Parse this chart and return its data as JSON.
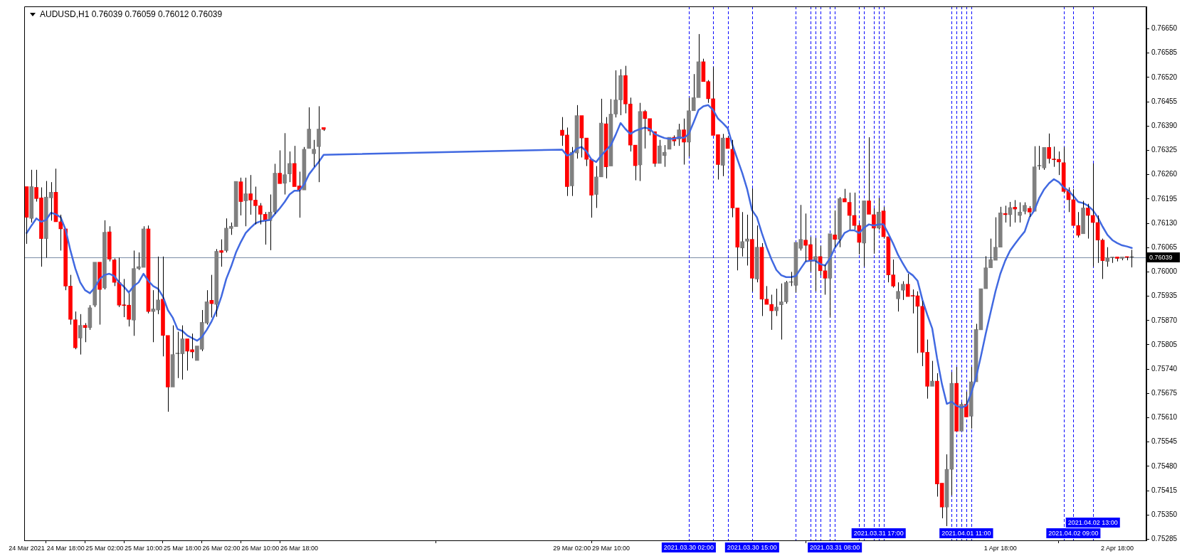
{
  "chart_data": {
    "type": "candlestick",
    "title": "AUDUSD,H1 0.76039 0.76059 0.76012 0.76039",
    "x": [
      "2021-03-24T10:00",
      "2021-03-24T11:00",
      "2021-03-24T12:00",
      "2021-03-24T13:00",
      "2021-03-24T14:00",
      "2021-03-24T15:00",
      "2021-03-24T16:00",
      "2021-03-24T17:00",
      "2021-03-24T18:00",
      "2021-03-24T19:00",
      "2021-03-24T20:00",
      "2021-03-24T21:00",
      "2021-03-24T22:00",
      "2021-03-24T23:00",
      "2021-03-25T00:00",
      "2021-03-25T01:00",
      "2021-03-25T02:00",
      "2021-03-25T03:00",
      "2021-03-25T04:00",
      "2021-03-25T05:00",
      "2021-03-25T06:00",
      "2021-03-25T07:00",
      "2021-03-25T08:00",
      "2021-03-25T09:00",
      "2021-03-25T10:00",
      "2021-03-25T11:00",
      "2021-03-25T12:00",
      "2021-03-25T13:00",
      "2021-03-25T14:00",
      "2021-03-25T15:00",
      "2021-03-25T16:00",
      "2021-03-25T17:00",
      "2021-03-25T18:00",
      "2021-03-25T19:00",
      "2021-03-25T20:00",
      "2021-03-25T21:00",
      "2021-03-25T22:00",
      "2021-03-25T23:00",
      "2021-03-26T00:00",
      "2021-03-26T01:00",
      "2021-03-26T02:00",
      "2021-03-26T03:00",
      "2021-03-26T04:00",
      "2021-03-26T05:00",
      "2021-03-26T06:00",
      "2021-03-26T07:00",
      "2021-03-26T08:00",
      "2021-03-26T09:00",
      "2021-03-26T10:00",
      "2021-03-26T11:00",
      "2021-03-26T12:00",
      "2021-03-26T13:00",
      "2021-03-26T14:00",
      "2021-03-26T15:00",
      "2021-03-26T16:00",
      "2021-03-26T17:00",
      "2021-03-26T18:00",
      "2021-03-26T19:00",
      "2021-03-26T20:00",
      "2021-03-26T21:00",
      "2021-03-26T22:00",
      "2021-03-26T23:00",
      "2021-03-29T00:00",
      "2021-03-29T01:00",
      "2021-03-29T02:00",
      "2021-03-29T03:00",
      "2021-03-29T04:00",
      "2021-03-29T05:00",
      "2021-03-29T06:00",
      "2021-03-29T07:00",
      "2021-03-29T08:00",
      "2021-03-29T09:00",
      "2021-03-29T10:00",
      "2021-03-29T11:00",
      "2021-03-29T12:00",
      "2021-03-29T13:00",
      "2021-03-29T14:00",
      "2021-03-29T15:00",
      "2021-03-29T16:00",
      "2021-03-29T17:00",
      "2021-03-29T18:00",
      "2021-03-29T19:00",
      "2021-03-29T20:00",
      "2021-03-29T21:00",
      "2021-03-29T22:00",
      "2021-03-29T23:00",
      "2021-03-30T00:00",
      "2021-03-30T01:00",
      "2021-03-30T02:00",
      "2021-03-30T03:00",
      "2021-03-30T04:00",
      "2021-03-30T05:00",
      "2021-03-30T06:00",
      "2021-03-30T07:00",
      "2021-03-30T08:00",
      "2021-03-30T09:00",
      "2021-03-30T10:00",
      "2021-03-30T11:00",
      "2021-03-30T12:00",
      "2021-03-30T13:00",
      "2021-03-30T14:00",
      "2021-03-30T15:00",
      "2021-03-30T16:00",
      "2021-03-30T17:00",
      "2021-03-30T18:00",
      "2021-03-30T19:00",
      "2021-03-30T20:00",
      "2021-03-30T21:00",
      "2021-03-30T22:00",
      "2021-03-30T23:00",
      "2021-03-31T00:00",
      "2021-03-31T01:00",
      "2021-03-31T02:00",
      "2021-03-31T03:00",
      "2021-03-31T04:00",
      "2021-03-31T05:00",
      "2021-03-31T06:00",
      "2021-03-31T07:00",
      "2021-03-31T08:00",
      "2021-03-31T09:00",
      "2021-03-31T10:00",
      "2021-03-31T11:00",
      "2021-03-31T12:00",
      "2021-03-31T13:00",
      "2021-03-31T14:00",
      "2021-03-31T15:00",
      "2021-03-31T16:00",
      "2021-03-31T17:00",
      "2021-03-31T18:00",
      "2021-03-31T19:00",
      "2021-03-31T20:00",
      "2021-03-31T21:00",
      "2021-03-31T22:00",
      "2021-03-31T23:00",
      "2021-04-01T00:00",
      "2021-04-01T01:00",
      "2021-04-01T02:00",
      "2021-04-01T03:00",
      "2021-04-01T04:00",
      "2021-04-01T05:00",
      "2021-04-01T06:00",
      "2021-04-01T07:00",
      "2021-04-01T08:00",
      "2021-04-01T09:00",
      "2021-04-01T10:00",
      "2021-04-01T11:00",
      "2021-04-01T12:00",
      "2021-04-01T13:00",
      "2021-04-01T14:00",
      "2021-04-01T15:00",
      "2021-04-01T16:00",
      "2021-04-01T17:00",
      "2021-04-01T18:00",
      "2021-04-01T19:00",
      "2021-04-01T20:00",
      "2021-04-01T21:00",
      "2021-04-01T22:00",
      "2021-04-01T23:00",
      "2021-04-02T00:00",
      "2021-04-02T01:00",
      "2021-04-02T02:00",
      "2021-04-02T03:00",
      "2021-04-02T04:00",
      "2021-04-02T05:00",
      "2021-04-02T06:00",
      "2021-04-02T07:00",
      "2021-04-02T08:00",
      "2021-04-02T09:00",
      "2021-04-02T10:00",
      "2021-04-02T11:00",
      "2021-04-02T12:00",
      "2021-04-02T13:00",
      "2021-04-02T14:00",
      "2021-04-02T15:00",
      "2021-04-02T16:00",
      "2021-04-02T17:00",
      "2021-04-02T18:00",
      "2021-04-02T19:00",
      "2021-04-02T20:00",
      "2021-04-02T21:00"
    ],
    "ohlc": [
      [
        0.76228,
        0.76231,
        0.76075,
        0.76146
      ],
      [
        0.76143,
        0.76273,
        0.76132,
        0.76228
      ],
      [
        0.76226,
        0.76273,
        0.76188,
        0.76196
      ],
      [
        0.76198,
        0.76226,
        0.76014,
        0.76089
      ],
      [
        0.76089,
        0.76243,
        0.76038,
        0.762
      ],
      [
        0.76198,
        0.7624,
        0.76137,
        0.76213
      ],
      [
        0.76213,
        0.76276,
        0.76132,
        0.76134
      ],
      [
        0.76134,
        0.76153,
        0.76057,
        0.76115
      ],
      [
        0.76115,
        0.76117,
        0.75951,
        0.75962
      ],
      [
        0.75962,
        0.75992,
        0.75859,
        0.75873
      ],
      [
        0.75872,
        0.75894,
        0.75793,
        0.75797
      ],
      [
        0.75823,
        0.75887,
        0.75779,
        0.75857
      ],
      [
        0.75857,
        0.75863,
        0.75812,
        0.75851
      ],
      [
        0.75851,
        0.75911,
        0.75845,
        0.75904
      ],
      [
        0.75911,
        0.76026,
        0.75906,
        0.76026
      ],
      [
        0.76026,
        0.76026,
        0.75859,
        0.75953
      ],
      [
        0.75957,
        0.76138,
        0.75953,
        0.76106
      ],
      [
        0.76107,
        0.76122,
        0.76028,
        0.76034
      ],
      [
        0.76032,
        0.76036,
        0.75962,
        0.75972
      ],
      [
        0.75972,
        0.76038,
        0.75906,
        0.75911
      ],
      [
        0.75911,
        0.75981,
        0.75879,
        0.7591
      ],
      [
        0.75911,
        0.75943,
        0.75854,
        0.75873
      ],
      [
        0.75871,
        0.76057,
        0.75829,
        0.76009
      ],
      [
        0.76009,
        0.76052,
        0.76005,
        0.76014
      ],
      [
        0.76012,
        0.76122,
        0.76011,
        0.76115
      ],
      [
        0.76115,
        0.76124,
        0.75889,
        0.75894
      ],
      [
        0.75894,
        0.75951,
        0.75812,
        0.75901
      ],
      [
        0.75898,
        0.76041,
        0.75887,
        0.75925
      ],
      [
        0.75927,
        0.76041,
        0.75774,
        0.7583
      ],
      [
        0.7583,
        0.7583,
        0.75626,
        0.75692
      ],
      [
        0.75692,
        0.75857,
        0.75689,
        0.75779
      ],
      [
        0.75781,
        0.7584,
        0.75716,
        0.75781
      ],
      [
        0.75781,
        0.75857,
        0.75712,
        0.75821
      ],
      [
        0.75821,
        0.75821,
        0.75736,
        0.75788
      ],
      [
        0.75792,
        0.75835,
        0.75769,
        0.75786
      ],
      [
        0.75763,
        0.75804,
        0.75761,
        0.75802
      ],
      [
        0.75793,
        0.75898,
        0.75788,
        0.75865
      ],
      [
        0.75863,
        0.75951,
        0.75859,
        0.7592
      ],
      [
        0.75924,
        0.75992,
        0.75878,
        0.75915
      ],
      [
        0.75913,
        0.76061,
        0.7588,
        0.76055
      ],
      [
        0.76057,
        0.76087,
        0.76014,
        0.76052
      ],
      [
        0.76057,
        0.76143,
        0.76052,
        0.76117
      ],
      [
        0.76116,
        0.76132,
        0.76099,
        0.76122
      ],
      [
        0.76121,
        0.76245,
        0.76118,
        0.76242
      ],
      [
        0.76241,
        0.76252,
        0.76151,
        0.76188
      ],
      [
        0.7619,
        0.76252,
        0.76122,
        0.76209
      ],
      [
        0.76209,
        0.76259,
        0.76153,
        0.76192
      ],
      [
        0.76192,
        0.76228,
        0.76127,
        0.76177
      ],
      [
        0.76177,
        0.76184,
        0.76127,
        0.76154
      ],
      [
        0.76154,
        0.7616,
        0.76073,
        0.76136
      ],
      [
        0.76137,
        0.76207,
        0.76058,
        0.7616
      ],
      [
        0.7616,
        0.76289,
        0.76155,
        0.76264
      ],
      [
        0.76264,
        0.76325,
        0.76234,
        0.76236
      ],
      [
        0.76237,
        0.76371,
        0.76207,
        0.7626
      ],
      [
        0.76262,
        0.76322,
        0.7624,
        0.7629
      ],
      [
        0.7629,
        0.76337,
        0.76226,
        0.76228
      ],
      [
        0.7623,
        0.76268,
        0.76145,
        0.76219
      ],
      [
        0.76219,
        0.76334,
        0.76217,
        0.76328
      ],
      [
        0.7633,
        0.7644,
        0.76328,
        0.76382
      ],
      [
        0.76316,
        0.76353,
        0.76281,
        0.76328
      ],
      [
        0.76335,
        0.76443,
        0.7624,
        0.76382
      ],
      [
        0.76386,
        0.76388,
        0.76377,
        0.76381
      ],
      [
        0.76379,
        0.76414,
        0.76337,
        0.76365
      ],
      [
        0.76366,
        0.76386,
        0.76203,
        0.76228
      ],
      [
        0.7623,
        0.76334,
        0.76203,
        0.7632
      ],
      [
        0.76318,
        0.76446,
        0.76303,
        0.76418
      ],
      [
        0.76418,
        0.76418,
        0.76306,
        0.76358
      ],
      [
        0.76358,
        0.7636,
        0.76283,
        0.76301
      ],
      [
        0.76301,
        0.76303,
        0.76145,
        0.76205
      ],
      [
        0.76207,
        0.76283,
        0.76171,
        0.76254
      ],
      [
        0.76254,
        0.76463,
        0.76254,
        0.76398
      ],
      [
        0.76396,
        0.76414,
        0.7625,
        0.76281
      ],
      [
        0.76283,
        0.76462,
        0.76281,
        0.76422
      ],
      [
        0.76422,
        0.76539,
        0.76413,
        0.7646
      ],
      [
        0.7646,
        0.76542,
        0.76419,
        0.76525
      ],
      [
        0.76525,
        0.76551,
        0.76424,
        0.76449
      ],
      [
        0.76449,
        0.76466,
        0.76322,
        0.76339
      ],
      [
        0.76339,
        0.76339,
        0.76245,
        0.76284
      ],
      [
        0.76286,
        0.76452,
        0.76243,
        0.76429
      ],
      [
        0.76429,
        0.76433,
        0.7633,
        0.7641
      ],
      [
        0.7641,
        0.76413,
        0.76365,
        0.76377
      ],
      [
        0.76375,
        0.76377,
        0.76281,
        0.7629
      ],
      [
        0.7629,
        0.76353,
        0.7629,
        0.76337
      ],
      [
        0.76311,
        0.76339,
        0.76281,
        0.7632
      ],
      [
        0.76328,
        0.76362,
        0.76325,
        0.7636
      ],
      [
        0.7636,
        0.76365,
        0.76337,
        0.7635
      ],
      [
        0.76355,
        0.76396,
        0.76337,
        0.7638
      ],
      [
        0.7638,
        0.7641,
        0.76287,
        0.76347
      ],
      [
        0.76347,
        0.76466,
        0.76309,
        0.76431
      ],
      [
        0.76431,
        0.76529,
        0.76429,
        0.76466
      ],
      [
        0.76466,
        0.76636,
        0.76463,
        0.76562
      ],
      [
        0.76562,
        0.7657,
        0.76507,
        0.76509
      ],
      [
        0.76509,
        0.76513,
        0.76452,
        0.76463
      ],
      [
        0.76463,
        0.76548,
        0.76365,
        0.76365
      ],
      [
        0.76367,
        0.76369,
        0.76247,
        0.76287
      ],
      [
        0.76285,
        0.76369,
        0.76256,
        0.76358
      ],
      [
        0.76358,
        0.76363,
        0.76328,
        0.7633
      ],
      [
        0.76328,
        0.76353,
        0.76146,
        0.76171
      ],
      [
        0.76171,
        0.76171,
        0.76004,
        0.76066
      ],
      [
        0.76064,
        0.7616,
        0.76041,
        0.76081
      ],
      [
        0.76082,
        0.76153,
        0.76017,
        0.76088
      ],
      [
        0.76087,
        0.76223,
        0.75947,
        0.75983
      ],
      [
        0.75981,
        0.76124,
        0.75972,
        0.76066
      ],
      [
        0.76066,
        0.76077,
        0.75882,
        0.75927
      ],
      [
        0.75927,
        0.75962,
        0.75911,
        0.75913
      ],
      [
        0.75913,
        0.75939,
        0.75845,
        0.75896
      ],
      [
        0.75896,
        0.75955,
        0.75882,
        0.75906
      ],
      [
        0.75912,
        0.75969,
        0.75819,
        0.7592
      ],
      [
        0.7592,
        0.75976,
        0.75915,
        0.75972
      ],
      [
        0.75972,
        0.76,
        0.75962,
        0.75973
      ],
      [
        0.75964,
        0.76079,
        0.75945,
        0.76079
      ],
      [
        0.76063,
        0.76179,
        0.76057,
        0.76087
      ],
      [
        0.76085,
        0.76156,
        0.76028,
        0.76071
      ],
      [
        0.76073,
        0.76094,
        0.76,
        0.76028
      ],
      [
        0.7603,
        0.76091,
        0.75948,
        0.76041
      ],
      [
        0.76041,
        0.7607,
        0.75991,
        0.76003
      ],
      [
        0.76003,
        0.76019,
        0.75939,
        0.75983
      ],
      [
        0.75983,
        0.76102,
        0.75878,
        0.76102
      ],
      [
        0.76099,
        0.76164,
        0.76066,
        0.76087
      ],
      [
        0.76087,
        0.762,
        0.76066,
        0.76196
      ],
      [
        0.76196,
        0.76222,
        0.76184,
        0.76187
      ],
      [
        0.76186,
        0.76212,
        0.76113,
        0.76151
      ],
      [
        0.76151,
        0.76212,
        0.76113,
        0.76124
      ],
      [
        0.76124,
        0.7613,
        0.76047,
        0.76079
      ],
      [
        0.76077,
        0.76193,
        0.76014,
        0.7619
      ],
      [
        0.7619,
        0.7636,
        0.76151,
        0.76154
      ],
      [
        0.76153,
        0.7617,
        0.76049,
        0.76117
      ],
      [
        0.76117,
        0.76198,
        0.76113,
        0.7616
      ],
      [
        0.76163,
        0.76174,
        0.76089,
        0.76094
      ],
      [
        0.76094,
        0.76094,
        0.75972,
        0.75992
      ],
      [
        0.75992,
        0.76033,
        0.75958,
        0.75962
      ],
      [
        0.75928,
        0.75972,
        0.75894,
        0.75948
      ],
      [
        0.75951,
        0.75975,
        0.75925,
        0.75967
      ],
      [
        0.75967,
        0.75995,
        0.75932,
        0.75934
      ],
      [
        0.75936,
        0.75953,
        0.75889,
        0.75935
      ],
      [
        0.75936,
        0.75948,
        0.75783,
        0.75908
      ],
      [
        0.75908,
        0.75922,
        0.75748,
        0.75785
      ],
      [
        0.75785,
        0.75819,
        0.75661,
        0.75694
      ],
      [
        0.75694,
        0.75762,
        0.75691,
        0.75708
      ],
      [
        0.75708,
        0.75729,
        0.75399,
        0.75433
      ],
      [
        0.75435,
        0.75437,
        0.75341,
        0.75371
      ],
      [
        0.75371,
        0.75512,
        0.7532,
        0.75472
      ],
      [
        0.75472,
        0.75732,
        0.75402,
        0.75702
      ],
      [
        0.75702,
        0.75746,
        0.75572,
        0.75574
      ],
      [
        0.75574,
        0.75651,
        0.75572,
        0.75646
      ],
      [
        0.75646,
        0.7568,
        0.75609,
        0.75612
      ],
      [
        0.75614,
        0.75746,
        0.75581,
        0.75706
      ],
      [
        0.75706,
        0.75861,
        0.75703,
        0.75846
      ],
      [
        0.75845,
        0.75958,
        0.75844,
        0.75955
      ],
      [
        0.75955,
        0.76042,
        0.75953,
        0.76011
      ],
      [
        0.76011,
        0.76089,
        0.76009,
        0.76033
      ],
      [
        0.76031,
        0.76146,
        0.7603,
        0.76066
      ],
      [
        0.76066,
        0.76174,
        0.76064,
        0.76158
      ],
      [
        0.76156,
        0.76177,
        0.76132,
        0.76153
      ],
      [
        0.76153,
        0.76187,
        0.76121,
        0.76172
      ],
      [
        0.76173,
        0.76192,
        0.76132,
        0.76168
      ],
      [
        0.76151,
        0.76186,
        0.76132,
        0.7616
      ],
      [
        0.76162,
        0.76186,
        0.76154,
        0.76178
      ],
      [
        0.7617,
        0.76176,
        0.76147,
        0.7616
      ],
      [
        0.76162,
        0.76336,
        0.7616,
        0.76281
      ],
      [
        0.76283,
        0.76337,
        0.76273,
        0.76284
      ],
      [
        0.76278,
        0.76334,
        0.76273,
        0.76333
      ],
      [
        0.76333,
        0.7637,
        0.7629,
        0.76303
      ],
      [
        0.76301,
        0.76335,
        0.76281,
        0.763
      ],
      [
        0.76301,
        0.76322,
        0.76259,
        0.76294
      ],
      [
        0.76292,
        0.76334,
        0.7621,
        0.76215
      ],
      [
        0.76217,
        0.76226,
        0.7616,
        0.76193
      ],
      [
        0.76193,
        0.76221,
        0.76121,
        0.76124
      ],
      [
        0.76124,
        0.7616,
        0.76092,
        0.76098
      ],
      [
        0.76102,
        0.7619,
        0.76099,
        0.76171
      ],
      [
        0.76171,
        0.76182,
        0.76089,
        0.76151
      ],
      [
        0.76151,
        0.7629,
        0.76014,
        0.76132
      ],
      [
        0.76132,
        0.76151,
        0.76024,
        0.76085
      ],
      [
        0.76085,
        0.76089,
        0.75981,
        0.7603
      ],
      [
        0.76028,
        0.76066,
        0.76014,
        0.76038
      ],
      [
        0.76038,
        0.7604,
        0.76024,
        0.76039
      ],
      [
        0.7604,
        0.76042,
        0.76028,
        0.76036
      ],
      [
        0.76036,
        0.76042,
        0.76031,
        0.7604
      ],
      [
        0.7604,
        0.76042,
        0.76031,
        0.76039
      ],
      [
        0.76039,
        0.76059,
        0.76012,
        0.76039
      ]
    ],
    "colors": [
      "#ff0000",
      "#808080",
      "#ff0000",
      "#ff0000",
      "#808080",
      "#808080",
      "#ff0000",
      "#ff0000",
      "#ff0000",
      "#ff0000",
      "#ff0000",
      "#808080",
      "#ff0000",
      "#808080",
      "#808080",
      "#ff0000",
      "#808080",
      "#ff0000",
      "#ff0000",
      "#ff0000",
      "#ff0000",
      "#ff0000",
      "#808080",
      "#808080",
      "#808080",
      "#ff0000",
      "#808080",
      "#808080",
      "#ff0000",
      "#ff0000",
      "#808080",
      "#808080",
      "#808080",
      "#ff0000",
      "#ff0000",
      "#808080",
      "#808080",
      "#808080",
      "#ff0000",
      "#808080",
      "#ff0000",
      "#808080",
      "#808080",
      "#808080",
      "#ff0000",
      "#808080",
      "#ff0000",
      "#ff0000",
      "#ff0000",
      "#ff0000",
      "#808080",
      "#808080",
      "#ff0000",
      "#808080",
      "#808080",
      "#ff0000",
      "#ff0000",
      "#808080",
      "#808080",
      "#808080",
      "#808080",
      "#ff0000",
      "#ff0000",
      "#ff0000",
      "#808080",
      "#808080",
      "#ff0000",
      "#ff0000",
      "#ff0000",
      "#808080",
      "#808080",
      "#ff0000",
      "#808080",
      "#808080",
      "#808080",
      "#ff0000",
      "#ff0000",
      "#ff0000",
      "#808080",
      "#ff0000",
      "#ff0000",
      "#ff0000",
      "#808080",
      "#808080",
      "#808080",
      "#ff0000",
      "#808080",
      "#ff0000",
      "#808080",
      "#808080",
      "#808080",
      "#ff0000",
      "#ff0000",
      "#ff0000",
      "#ff0000",
      "#808080",
      "#ff0000",
      "#ff0000",
      "#ff0000",
      "#808080",
      "#808080",
      "#ff0000",
      "#808080",
      "#ff0000",
      "#ff0000",
      "#ff0000",
      "#808080",
      "#808080",
      "#808080",
      "#808080",
      "#808080",
      "#808080",
      "#ff0000",
      "#ff0000",
      "#808080",
      "#ff0000",
      "#ff0000",
      "#808080",
      "#ff0000",
      "#808080",
      "#ff0000",
      "#ff0000",
      "#ff0000",
      "#ff0000",
      "#808080",
      "#ff0000",
      "#ff0000",
      "#808080",
      "#ff0000",
      "#ff0000",
      "#ff0000",
      "#808080",
      "#808080",
      "#ff0000",
      "#ff0000",
      "#ff0000",
      "#ff0000",
      "#ff0000",
      "#808080",
      "#ff0000",
      "#ff0000",
      "#808080",
      "#808080",
      "#ff0000",
      "#808080",
      "#ff0000",
      "#808080",
      "#808080",
      "#808080",
      "#808080",
      "#808080",
      "#808080",
      "#808080",
      "#ff0000",
      "#808080",
      "#ff0000",
      "#808080",
      "#808080",
      "#ff0000",
      "#808080",
      "#808080",
      "#808080",
      "#ff0000",
      "#ff0000",
      "#ff0000",
      "#ff0000",
      "#ff0000",
      "#ff0000",
      "#ff0000",
      "#808080",
      "#ff0000",
      "#ff0000",
      "#ff0000",
      "#ff0000",
      "#808080",
      "#808080",
      "#ff0000",
      "#808080",
      "#ff0000",
      "#808080"
    ],
    "series": [
      {
        "type": "line",
        "color": "#4169e1",
        "values": [
          0.76104,
          0.76124,
          0.76143,
          0.76134,
          0.76139,
          0.76158,
          0.76154,
          0.76146,
          0.76113,
          0.76057,
          0.76009,
          0.75972,
          0.75951,
          0.75943,
          0.75958,
          0.75981,
          0.75992,
          0.75995,
          0.75989,
          0.75972,
          0.7596,
          0.75945,
          0.75962,
          0.75972,
          0.75995,
          0.75976,
          0.75962,
          0.75955,
          0.75934,
          0.75898,
          0.75878,
          0.75847,
          0.75842,
          0.7583,
          0.75823,
          0.75816,
          0.75826,
          0.75845,
          0.75868,
          0.75896,
          0.75934,
          0.75981,
          0.76014,
          0.76052,
          0.7608,
          0.76104,
          0.76118,
          0.7613,
          0.76135,
          0.76137,
          0.76139,
          0.76155,
          0.7617,
          0.76187,
          0.76207,
          0.76217,
          0.76217,
          0.76234,
          0.76261,
          0.76278,
          0.76294,
          0.76313,
          0.76327,
          0.76311,
          0.76316,
          0.7633,
          0.76334,
          0.76322,
          0.76301,
          0.76294,
          0.76311,
          0.76325,
          0.76339,
          0.76367,
          0.76398,
          0.76382,
          0.76369,
          0.76377,
          0.76382,
          0.76386,
          0.76382,
          0.76369,
          0.76363,
          0.76358,
          0.76356,
          0.76356,
          0.7636,
          0.76358,
          0.76369,
          0.764,
          0.76433,
          0.76443,
          0.76446,
          0.76433,
          0.7641,
          0.76398,
          0.76384,
          0.76339,
          0.76301,
          0.76264,
          0.76221,
          0.76165,
          0.76146,
          0.76104,
          0.76066,
          0.76033,
          0.76005,
          0.75991,
          0.75986,
          0.75986,
          0.75989,
          0.76009,
          0.76028,
          0.7603,
          0.7603,
          0.76021,
          0.76017,
          0.76036,
          0.76064,
          0.76083,
          0.76104,
          0.76111,
          0.76111,
          0.76104,
          0.76118,
          0.76127,
          0.76124,
          0.76127,
          0.76127,
          0.76102,
          0.76075,
          0.76045,
          0.76022,
          0.76,
          0.75991,
          0.75976,
          0.75925,
          0.75885,
          0.75849,
          0.75769,
          0.757,
          0.75647,
          0.75653,
          0.75642,
          0.75637,
          0.75642,
          0.75675,
          0.75717,
          0.75774,
          0.75835,
          0.75892,
          0.75948,
          0.75995,
          0.7603,
          0.76057,
          0.76075,
          0.76092,
          0.76108,
          0.76146,
          0.76165,
          0.76198,
          0.76221,
          0.76237,
          0.76248,
          0.7624,
          0.76226,
          0.76217,
          0.76203,
          0.76187,
          0.76184,
          0.76177,
          0.76165,
          0.76146,
          0.76121,
          0.76099,
          0.76085,
          0.76077,
          0.76071,
          0.76068,
          0.76064
        ]
      }
    ],
    "xlim": [
      "2021-03-24T09:30",
      "2021-04-03T00:00"
    ],
    "ylim": [
      0.75282,
      0.7671
    ],
    "xticks": [
      {
        "value": "2021-03-24T10:00",
        "label": "24 Mar 2021"
      },
      {
        "value": "2021-03-24T18:00",
        "label": "24 Mar 18:00"
      },
      {
        "value": "2021-03-25T02:00",
        "label": "25 Mar 02:00"
      },
      {
        "value": "2021-03-25T10:00",
        "label": "25 Mar 10:00"
      },
      {
        "value": "2021-03-25T18:00",
        "label": "25 Mar 18:00"
      },
      {
        "value": "2021-03-26T02:00",
        "label": "26 Mar 02:00"
      },
      {
        "value": "2021-03-26T10:00",
        "label": "26 Mar 10:00"
      },
      {
        "value": "2021-03-26T18:00",
        "label": "26 Mar 18:00"
      },
      {
        "value": "2021-03-29T02:00",
        "label": "29 Mar 02:00"
      },
      {
        "value": "2021-03-29T10:00",
        "label": "29 Mar 10:00"
      },
      {
        "value": "2021-04-01T18:00",
        "label": "1 Apr 18:00"
      },
      {
        "value": "2021-04-02T18:00",
        "label": "2 Apr 18:00"
      }
    ],
    "yticks": [
      {
        "value": 0.7665,
        "label": "0.76650"
      },
      {
        "value": 0.76585,
        "label": "0.76585"
      },
      {
        "value": 0.7652,
        "label": "0.76520"
      },
      {
        "value": 0.76455,
        "label": "0.76455"
      },
      {
        "value": 0.7639,
        "label": "0.76390"
      },
      {
        "value": 0.76325,
        "label": "0.76325"
      },
      {
        "value": 0.7626,
        "label": "0.76260"
      },
      {
        "value": 0.76195,
        "label": "0.76195"
      },
      {
        "value": 0.7613,
        "label": "0.76130"
      },
      {
        "value": 0.76065,
        "label": "0.76065"
      },
      {
        "value": 0.76,
        "label": "0.76000"
      },
      {
        "value": 0.75935,
        "label": "0.75935"
      },
      {
        "value": 0.7587,
        "label": "0.75870"
      },
      {
        "value": 0.75805,
        "label": "0.75805"
      },
      {
        "value": 0.7574,
        "label": "0.75740"
      },
      {
        "value": 0.75675,
        "label": "0.75675"
      },
      {
        "value": 0.7561,
        "label": "0.75610"
      },
      {
        "value": 0.75545,
        "label": "0.75545"
      },
      {
        "value": 0.7548,
        "label": "0.75480"
      },
      {
        "value": 0.75415,
        "label": "0.75415"
      },
      {
        "value": 0.7535,
        "label": "0.75350"
      },
      {
        "value": 0.75285,
        "label": "0.75285"
      }
    ],
    "ref_lines": [
      {
        "axis": "y",
        "value": 0.76039,
        "label": "0.76039",
        "color": "#7b8ca5"
      },
      {
        "axis": "x",
        "value": "2021-03-30T02:00",
        "label": "2021.03.30 02:00",
        "color": "#0000ff",
        "line_style": "dashed"
      },
      {
        "axis": "x",
        "value": "2021-03-30T07:00",
        "color": "#0000ff",
        "line_style": "dashed"
      },
      {
        "axis": "x",
        "value": "2021-03-30T10:00",
        "color": "#0000ff",
        "line_style": "dashed"
      },
      {
        "axis": "x",
        "value": "2021-03-30T15:00",
        "label": "2021.03.30 15:00",
        "color": "#0000ff",
        "line_style": "dashed"
      },
      {
        "axis": "x",
        "value": "2021-03-31T00:00",
        "color": "#0000ff",
        "line_style": "dashed"
      },
      {
        "axis": "x",
        "value": "2021-03-31T03:00",
        "color": "#0000ff",
        "line_style": "dashed"
      },
      {
        "axis": "x",
        "value": "2021-03-31T04:00",
        "color": "#0000ff",
        "line_style": "dashed"
      },
      {
        "axis": "x",
        "value": "2021-03-31T05:00",
        "color": "#0000ff",
        "line_style": "dashed"
      },
      {
        "axis": "x",
        "value": "2021-03-31T07:00",
        "color": "#0000ff",
        "line_style": "dashed"
      },
      {
        "axis": "x",
        "value": "2021-03-31T08:00",
        "label": "2021.03.31 08:00",
        "color": "#0000ff",
        "line_style": "dashed"
      },
      {
        "axis": "x",
        "value": "2021-03-31T13:00",
        "color": "#0000ff",
        "line_style": "dashed"
      },
      {
        "axis": "x",
        "value": "2021-03-31T14:00",
        "color": "#0000ff",
        "line_style": "dashed"
      },
      {
        "axis": "x",
        "value": "2021-03-31T16:00",
        "color": "#0000ff",
        "line_style": "dashed"
      },
      {
        "axis": "x",
        "value": "2021-03-31T17:00",
        "label": "2021.03.31 17:00",
        "color": "#0000ff",
        "line_style": "dashed"
      },
      {
        "axis": "x",
        "value": "2021-03-31T18:00",
        "color": "#0000ff",
        "line_style": "dashed"
      },
      {
        "axis": "x",
        "value": "2021-04-01T08:00",
        "color": "#0000ff",
        "line_style": "dashed"
      },
      {
        "axis": "x",
        "value": "2021-04-01T09:00",
        "color": "#0000ff",
        "line_style": "dashed"
      },
      {
        "axis": "x",
        "value": "2021-04-01T10:00",
        "color": "#0000ff",
        "line_style": "dashed"
      },
      {
        "axis": "x",
        "value": "2021-04-01T11:00",
        "label": "2021.04.01 11:00",
        "color": "#0000ff",
        "line_style": "dashed"
      },
      {
        "axis": "x",
        "value": "2021-04-01T12:00",
        "color": "#0000ff",
        "line_style": "dashed"
      },
      {
        "axis": "x",
        "value": "2021-04-02T07:00",
        "color": "#0000ff",
        "line_style": "dashed"
      },
      {
        "axis": "x",
        "value": "2021-04-02T09:00",
        "label": "2021.04.02 09:00",
        "color": "#0000ff",
        "line_style": "dashed"
      },
      {
        "axis": "x",
        "value": "2021-04-02T13:00",
        "label": "2021.04.02 13:00",
        "color": "#0000ff",
        "line_style": "dashed"
      }
    ],
    "grid": false,
    "legend": false,
    "marker": "none"
  }
}
